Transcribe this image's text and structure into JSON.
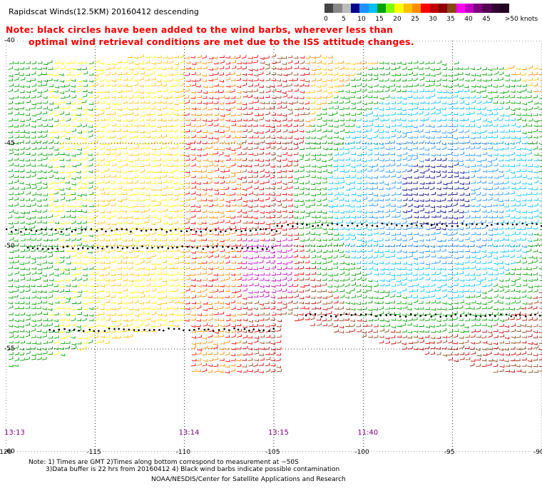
{
  "header": {
    "title": "Rapidscat Winds(12.5KM) 20160412 descending",
    "note_line1": "Note: black circles have been added to the wind barbs, wherever less than",
    "note_line2": "optimal wind retrieval conditions are met due to the ISS attitude changes."
  },
  "colors": {
    "note": "#ff0000",
    "time_labels": "#800080",
    "contamination": "#000000",
    "gridline": "#000000",
    "background": "#ffffff"
  },
  "scale": {
    "colors": [
      "#444444",
      "#888888",
      "#bbbbbb",
      "#00008b",
      "#1e90ff",
      "#00bfff",
      "#00a000",
      "#7fff00",
      "#ffff00",
      "#ffc000",
      "#ff8c00",
      "#ff0000",
      "#c00000",
      "#8b0000",
      "#8b4513",
      "#ff00ff",
      "#c000c0",
      "#800080",
      "#550055",
      "#330033",
      "#220022"
    ],
    "labels": [
      "0",
      "5",
      "10",
      "15",
      "20",
      "25",
      "30",
      "35",
      "40",
      "45",
      ">50 knots"
    ]
  },
  "map": {
    "lon_ticks": [
      "-120",
      "-115",
      "-110",
      "-105",
      "-100",
      "-95",
      "-90"
    ],
    "lat_ticks": [
      "-40",
      "-45",
      "-50",
      "-55",
      "-60"
    ],
    "time_labels": [
      "13:13",
      "13:14",
      "13:15",
      "11:40"
    ],
    "lon_range": [
      -120,
      -90
    ],
    "lat_range": [
      -60,
      -40
    ]
  },
  "footer": {
    "note_line1": "Note: 1) Times are GMT 2)Times along bottom correspond to measurement at ~50S",
    "note_line2": "3)Data buffer is 22 hrs from 20160412 4) Black wind barbs indicate possible contamination",
    "credit": "NOAA/NESDIS/Center for Satellite Applications and Research"
  }
}
